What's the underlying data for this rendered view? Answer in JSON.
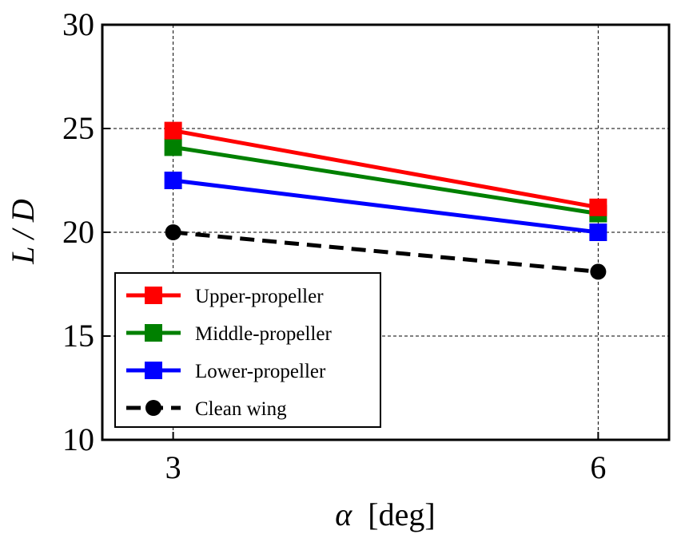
{
  "chart_data": {
    "type": "line",
    "x": [
      3,
      6
    ],
    "xticks": [
      "3",
      "6"
    ],
    "yticks": [
      "10",
      "15",
      "20",
      "25",
      "30"
    ],
    "xlabel_symbol": "α",
    "xlabel_unit": "[deg]",
    "ylabel": "L / D",
    "xlim": [
      2.5,
      6.5
    ],
    "ylim": [
      10,
      30
    ],
    "grid": true,
    "legend_position": "lower-left",
    "series": [
      {
        "name": "Upper-propeller",
        "values": [
          24.9,
          21.2
        ],
        "color": "#ff0000",
        "marker": "square",
        "dashed": false
      },
      {
        "name": "Middle-propeller",
        "values": [
          24.1,
          20.9
        ],
        "color": "#008000",
        "marker": "square",
        "dashed": false
      },
      {
        "name": "Lower-propeller",
        "values": [
          22.5,
          20.0
        ],
        "color": "#0000ff",
        "marker": "square",
        "dashed": false
      },
      {
        "name": "Clean wing",
        "values": [
          20.0,
          18.1
        ],
        "color": "#000000",
        "marker": "circle",
        "dashed": true
      }
    ]
  }
}
